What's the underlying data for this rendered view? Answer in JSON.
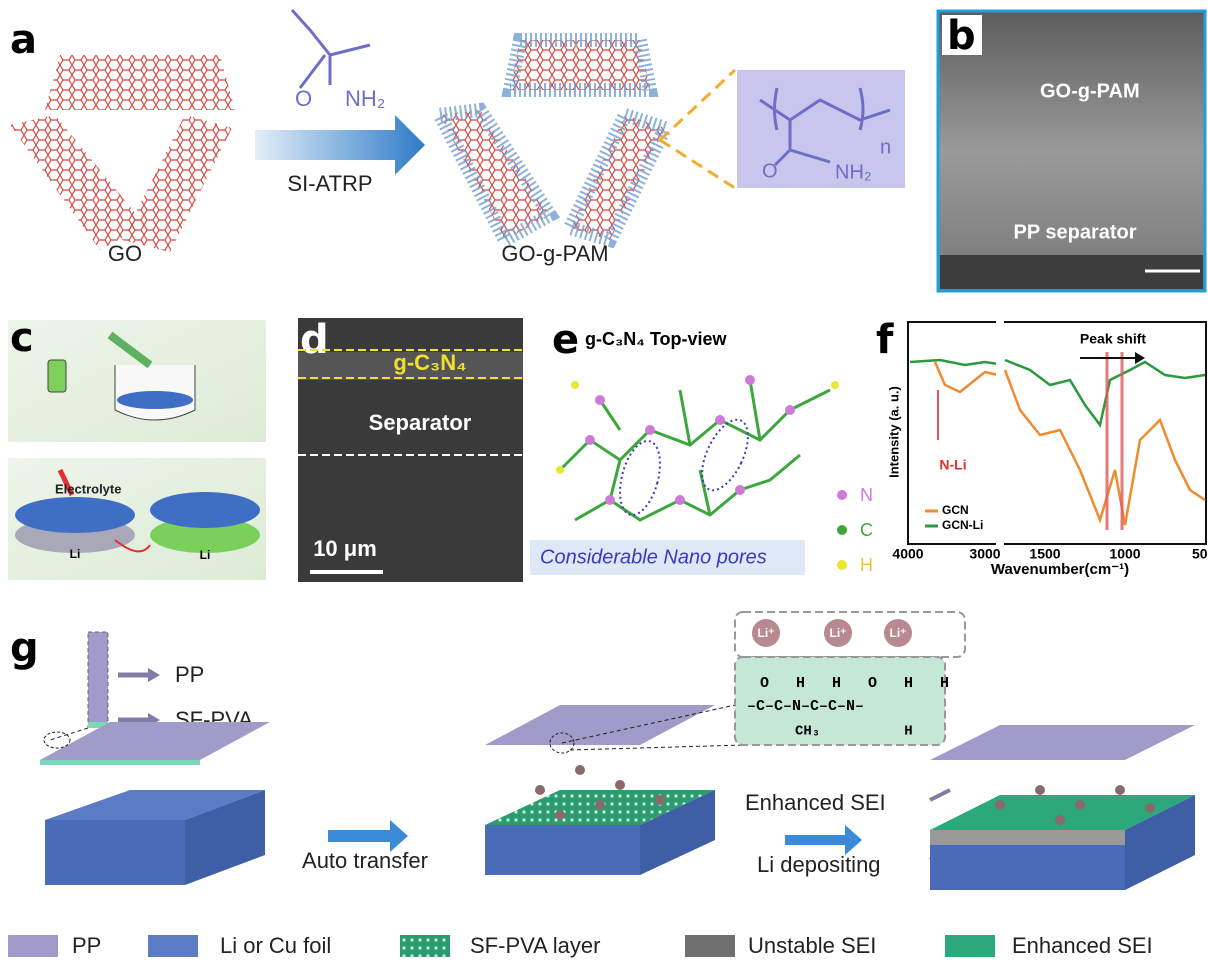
{
  "panels": {
    "a": {
      "label": "a",
      "monomer_o": "O",
      "monomer_nh2": "NH₂",
      "arrow_label": "SI-ATRP",
      "go": "GO",
      "product": "GO-g-PAM",
      "polymer_n": "n",
      "polymer_o": "O",
      "polymer_nh2": "NH₂"
    },
    "b": {
      "label": "b",
      "layer_top": "GO-g-PAM",
      "layer_bottom": "PP separator"
    },
    "c": {
      "label": "c",
      "electrolyte": "Electrolyte",
      "li_left": "Li",
      "li_right": "Li"
    },
    "d": {
      "label": "d",
      "coating": "g-C₃N₄",
      "separator": "Separator",
      "scale": "10 μm"
    },
    "e": {
      "label": "e",
      "title": "g-C₃N₄ Top-view",
      "caption": "Considerable Nano pores",
      "legend": [
        "N",
        "C",
        "H"
      ]
    },
    "f": {
      "label": "f",
      "annotation": "Peak shift",
      "n_li": "N-Li",
      "y_label": "Intensity (a. u.)",
      "x_label": "Wavenumber(cm⁻¹)",
      "x_ticks": [
        "4000",
        "3000",
        "1500",
        "1000",
        "50"
      ],
      "legend": [
        "GCN",
        "GCN-Li"
      ]
    },
    "g": {
      "label": "g",
      "pp": "PP",
      "sf_pva": "SF-PVA",
      "auto_transfer": "Auto transfer",
      "enhanced_sei": "Enhanced SEI",
      "li_depositing": "Li depositing",
      "li_ions": [
        "Li⁺",
        "Li⁺",
        "Li⁺"
      ],
      "formula": [
        "O   H   H   O   H   H",
        "–C–C–N–C–C–N–",
        "CH₃          H"
      ]
    }
  },
  "legend": [
    "PP",
    "Li or Cu foil",
    "SF-PVA layer",
    "Unstable SEI",
    "Enhanced SEI"
  ]
}
